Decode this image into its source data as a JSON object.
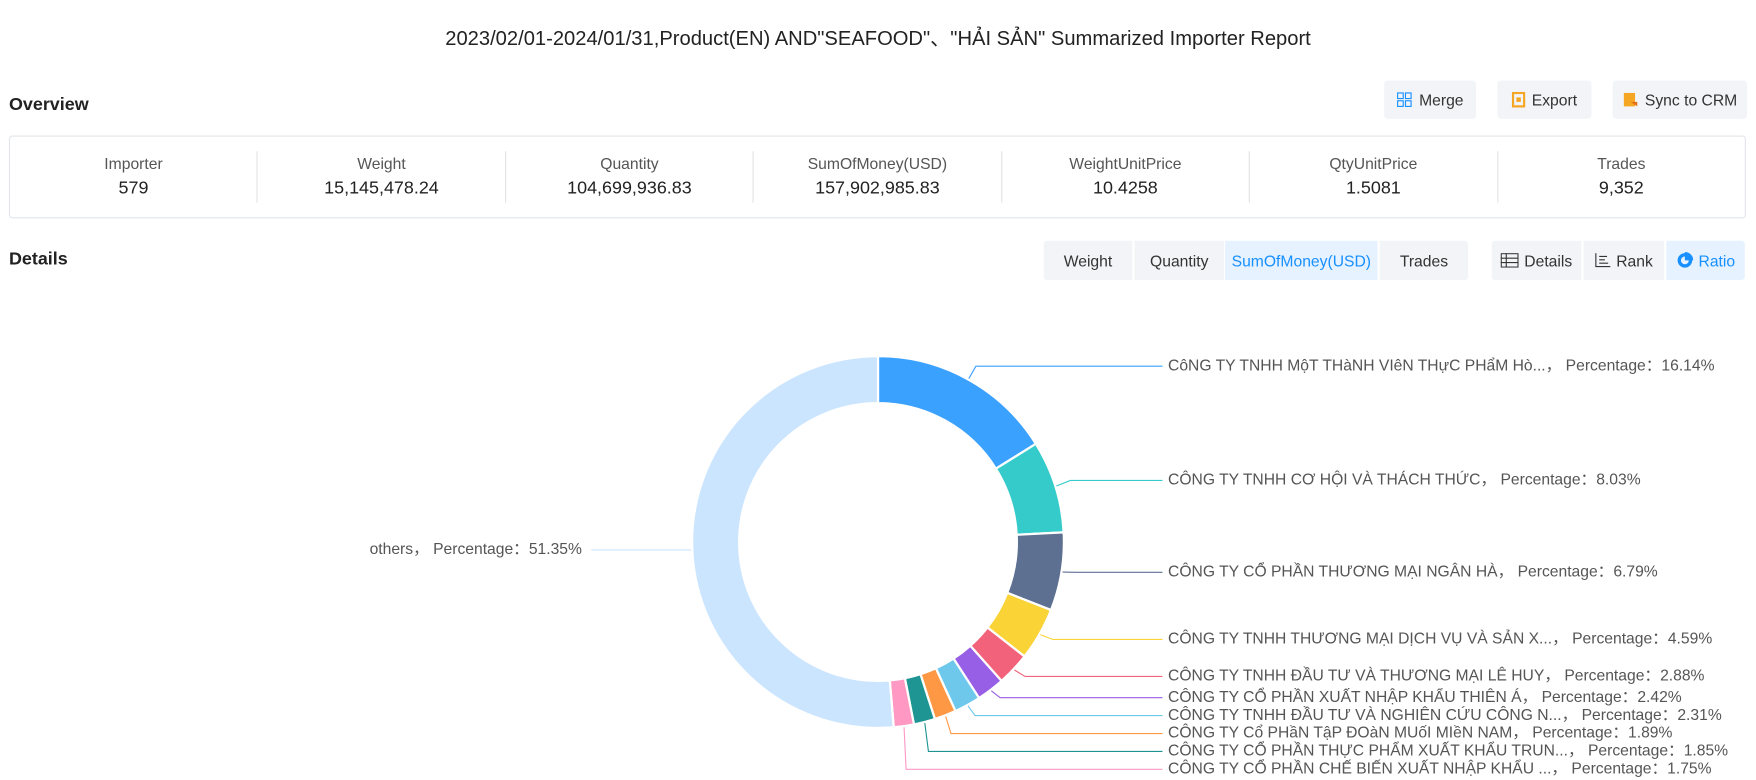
{
  "header": {
    "title": "2023/02/01-2024/01/31,Product(EN) AND\"SEAFOOD\"、\"HẢI SẢN\" Summarized Importer Report",
    "overview_label": "Overview"
  },
  "toolbar": {
    "buttons": [
      "Merge",
      "Export",
      "Sync to CRM"
    ]
  },
  "stats": [
    {
      "label": "Importer",
      "value": "579"
    },
    {
      "label": "Weight",
      "value": "15,145,478.24"
    },
    {
      "label": "Quantity",
      "value": "104,699,936.83"
    },
    {
      "label": "SumOfMoney(USD)",
      "value": "157,902,985.83"
    },
    {
      "label": "WeightUnitPrice",
      "value": "10.4258"
    },
    {
      "label": "QtyUnitPrice",
      "value": "1.5081"
    },
    {
      "label": "Trades",
      "value": "9,352"
    }
  ],
  "details": {
    "label": "Details",
    "metric_tabs": [
      "Weight",
      "Quantity",
      "SumOfMoney(USD)",
      "Trades"
    ],
    "view_tabs": [
      "Details",
      "Rank",
      "Ratio"
    ]
  },
  "chart_data": {
    "type": "pie",
    "percentage_label": "，  Percentage：",
    "categories": [
      "CôNG TY TNHH MộT THàNH VIêN THựC PHẩM Hò...",
      "CÔNG TY TNHH CƠ HỘI VÀ THÁCH THỨC",
      "CÔNG TY CỔ PHẦN THƯƠNG MẠI NGÂN HÀ",
      "CÔNG TY TNHH THƯƠNG MẠI DỊCH VỤ VÀ SẢN X...",
      "CÔNG TY TNHH ĐẦU TƯ VÀ THƯƠNG MẠI LÊ HUY",
      "CÔNG TY CỔ PHẦN XUẤT NHẬP KHẨU THIÊN Á",
      "CÔNG TY TNHH ĐẦU TƯ VÀ NGHIÊN CỨU CÔNG N...",
      "CÔNG TY Cổ PHầN TậP ĐOàN MUốI MIềN NAM",
      "CÔNG TY CỔ PHẦN THỰC PHẨM XUẤT KHẨU TRUN...",
      "CÔNG TY CỔ PHẦN CHẾ BIẾN XUẤT NHẬP KHẨU ...",
      "others"
    ],
    "values": [
      16.14,
      8.03,
      6.79,
      4.59,
      2.88,
      2.42,
      2.31,
      1.89,
      1.85,
      1.75,
      51.35
    ],
    "value_labels": [
      "16.14%",
      "8.03%",
      "6.79%",
      "4.59%",
      "2.88%",
      "2.42%",
      "2.31%",
      "1.89%",
      "1.85%",
      "1.75%",
      "51.35%"
    ],
    "colors": [
      "#3ba1ff",
      "#36cbcb",
      "#5d7092",
      "#fad337",
      "#f2637b",
      "#975fe5",
      "#6dc8ec",
      "#ff9845",
      "#1e9493",
      "#ff99c3",
      "#cce5ff"
    ]
  }
}
